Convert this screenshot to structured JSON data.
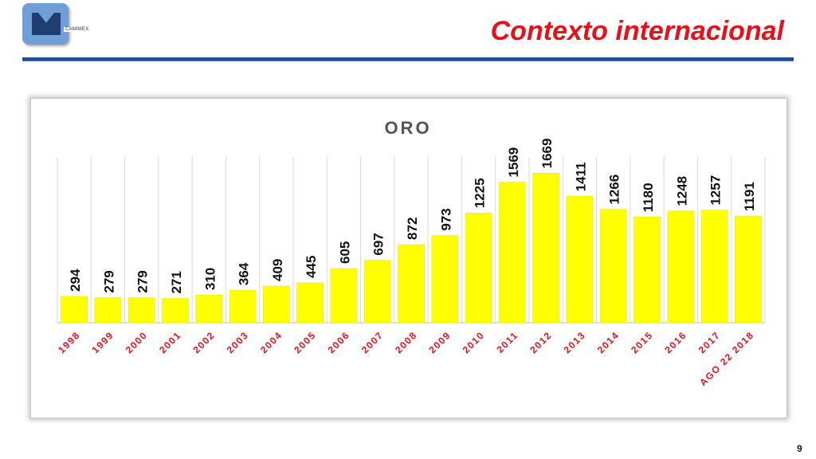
{
  "header": {
    "logo_text": "CAMIMEX",
    "title": "Contexto internacional"
  },
  "footer": {
    "page_number": "9"
  },
  "colors": {
    "bar": "#ffff00",
    "tick_label": "#e8101b",
    "value_label": "#111111",
    "title": "#e8101b",
    "rule": "#1f4e8c"
  },
  "chart_data": {
    "type": "bar",
    "title": "ORO",
    "categories": [
      "1998",
      "1999",
      "2000",
      "2001",
      "2002",
      "2003",
      "2004",
      "2005",
      "2006",
      "2007",
      "2008",
      "2009",
      "2010",
      "2011",
      "2012",
      "2013",
      "2014",
      "2015",
      "2016",
      "2017",
      "AGO 22 2018"
    ],
    "values": [
      294,
      279,
      279,
      271,
      310,
      364,
      409,
      445,
      605,
      697,
      872,
      973,
      1225,
      1569,
      1669,
      1411,
      1266,
      1180,
      1248,
      1257,
      1191
    ],
    "data_labels": [
      "294",
      "279",
      "279",
      "271",
      "310",
      "364",
      "409",
      "445",
      "605",
      "697",
      "872",
      "973",
      "1225",
      "1569",
      "1669",
      "1411",
      "1266",
      "1180",
      "1248",
      "1257",
      "1191"
    ],
    "ylim": [
      0,
      1850
    ],
    "xlabel": "",
    "ylabel": "",
    "grid": "vertical",
    "legend": "none"
  }
}
